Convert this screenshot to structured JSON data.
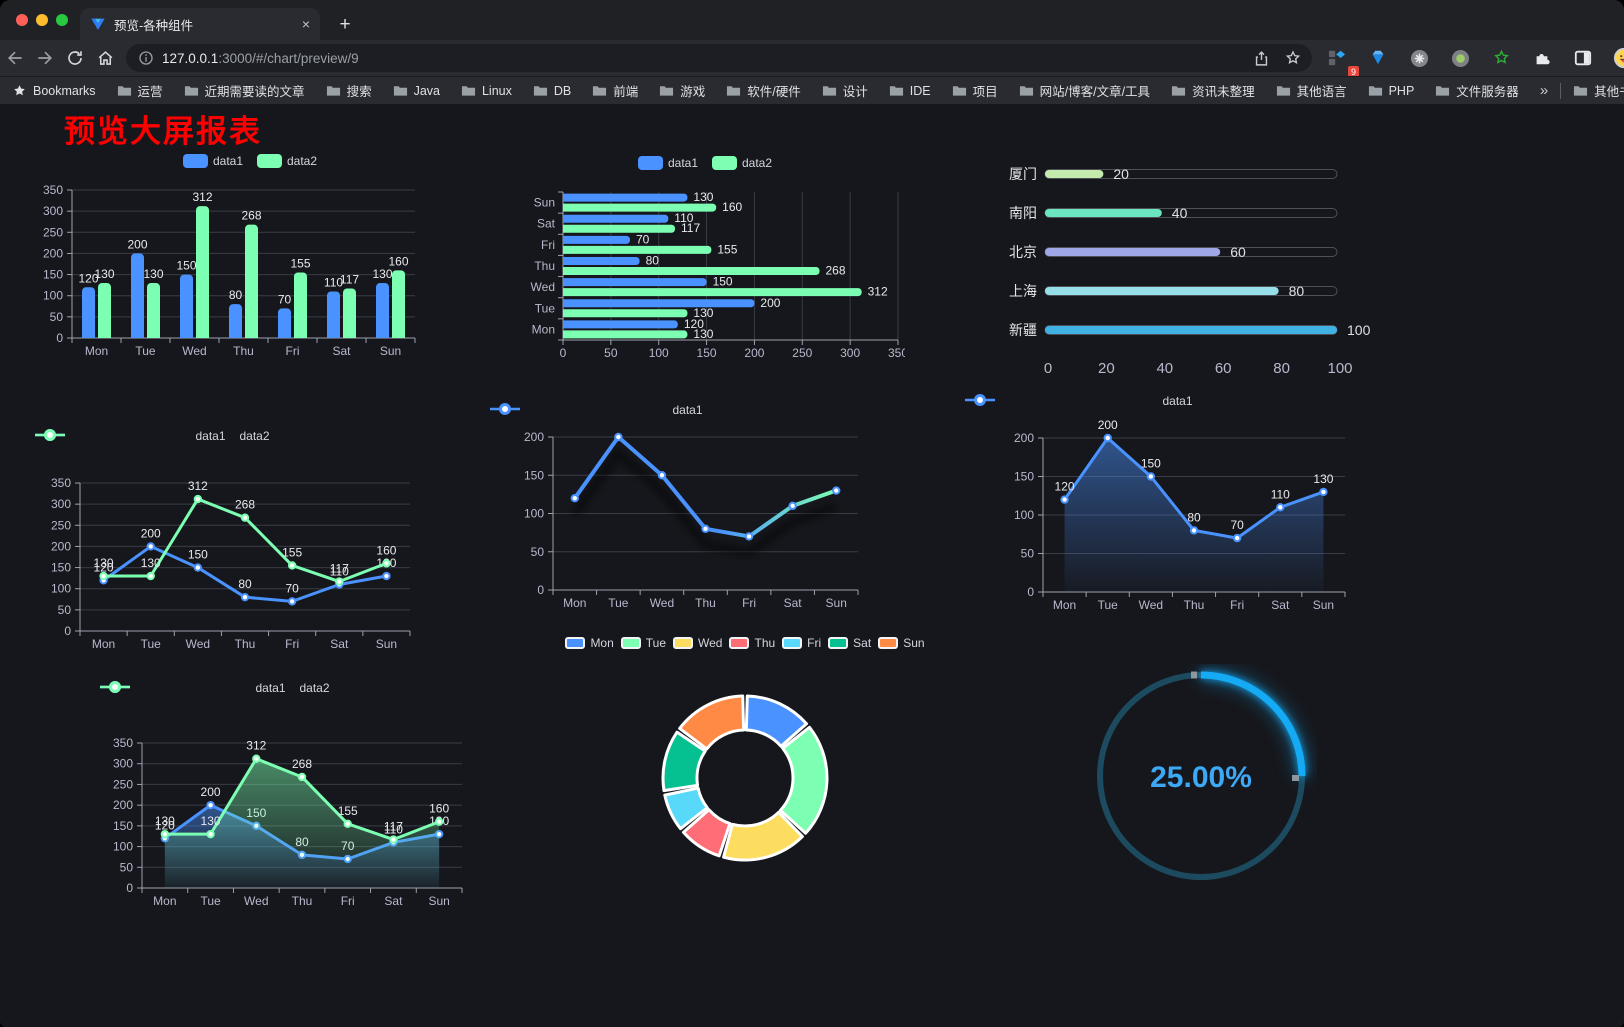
{
  "browser": {
    "tab": {
      "title": "预览-各种组件",
      "close_label": "×"
    },
    "new_tab_label": "+",
    "address": {
      "host": "127.0.0.1",
      "path": ":3000/#/chart/preview/9"
    },
    "extension_badge": "9",
    "bookmarks_bar": {
      "bookmarks_label": "Bookmarks",
      "folders": [
        "运营",
        "近期需要读的文章",
        "搜索",
        "Java",
        "Linux",
        "DB",
        "前端",
        "游戏",
        "软件/硬件",
        "设计",
        "IDE",
        "项目",
        "网站/博客/文章/工具",
        "资讯未整理",
        "其他语言",
        "PHP",
        "文件服务器"
      ],
      "overflow": "»",
      "other_bookmarks": "其他书签"
    }
  },
  "page": {
    "title": "预览大屏报表"
  },
  "colors": {
    "data1": "#4992ff",
    "data2": "#7cffb2",
    "title": "#ff0000",
    "axis": "#9fa2ae",
    "grid": "#3a3c46",
    "tick_label": "#b9b8ce",
    "value_label": "#e9eaee"
  },
  "chart_data": [
    {
      "id": "bar-vertical",
      "type": "bar",
      "categories": [
        "Mon",
        "Tue",
        "Wed",
        "Thu",
        "Fri",
        "Sat",
        "Sun"
      ],
      "series": [
        {
          "name": "data1",
          "color": "#4992ff",
          "values": [
            120,
            200,
            150,
            80,
            70,
            110,
            130
          ]
        },
        {
          "name": "data2",
          "color": "#7cffb2",
          "values": [
            130,
            130,
            312,
            268,
            155,
            117,
            160
          ]
        }
      ],
      "ylim": [
        0,
        350
      ],
      "yticks": [
        0,
        50,
        100,
        150,
        200,
        250,
        300,
        350
      ],
      "legend_position": "top",
      "value_labels": true,
      "grid": true
    },
    {
      "id": "bar-horizontal",
      "type": "bar",
      "orientation": "horizontal",
      "categories": [
        "Mon",
        "Tue",
        "Wed",
        "Thu",
        "Fri",
        "Sat",
        "Sun"
      ],
      "y_axis_top_to_bottom": [
        "Sun",
        "Sat",
        "Fri",
        "Thu",
        "Wed",
        "Tue",
        "Mon"
      ],
      "series": [
        {
          "name": "data1",
          "color": "#4992ff",
          "values": [
            120,
            200,
            150,
            80,
            70,
            110,
            130
          ]
        },
        {
          "name": "data2",
          "color": "#7cffb2",
          "values": [
            130,
            130,
            312,
            268,
            155,
            117,
            160
          ]
        }
      ],
      "xlim": [
        0,
        350
      ],
      "xticks": [
        0,
        50,
        100,
        150,
        200,
        250,
        300,
        350
      ],
      "legend_position": "top",
      "value_labels": true,
      "grid": true
    },
    {
      "id": "progress-bars",
      "type": "bar",
      "subtype": "progress",
      "items": [
        {
          "label": "厦门",
          "value": 20,
          "color": "#c4ebad"
        },
        {
          "label": "南阳",
          "value": 40,
          "color": "#6be6c1"
        },
        {
          "label": "北京",
          "value": 60,
          "color": "#a0a7e6"
        },
        {
          "label": "上海",
          "value": 80,
          "color": "#96dee8"
        },
        {
          "label": "新疆",
          "value": 100,
          "color": "#3fb1e3"
        }
      ],
      "xlim": [
        0,
        100
      ],
      "xticks": [
        0,
        20,
        40,
        60,
        80,
        100
      ]
    },
    {
      "id": "line-two-series",
      "type": "line",
      "categories": [
        "Mon",
        "Tue",
        "Wed",
        "Thu",
        "Fri",
        "Sat",
        "Sun"
      ],
      "series": [
        {
          "name": "data1",
          "color": "#4992ff",
          "values": [
            120,
            200,
            150,
            80,
            70,
            110,
            130
          ]
        },
        {
          "name": "data2",
          "color": "#7cffb2",
          "values": [
            130,
            130,
            312,
            268,
            155,
            117,
            160
          ]
        }
      ],
      "ylim": [
        0,
        350
      ],
      "yticks": [
        0,
        50,
        100,
        150,
        200,
        250,
        300,
        350
      ],
      "legend_position": "top",
      "value_labels": true
    },
    {
      "id": "line-gradient",
      "type": "line",
      "categories": [
        "Mon",
        "Tue",
        "Wed",
        "Thu",
        "Fri",
        "Sat",
        "Sun"
      ],
      "series": [
        {
          "name": "data1",
          "color": "#4992ff",
          "color_end": "#7cffb2",
          "values": [
            120,
            200,
            150,
            80,
            70,
            110,
            130
          ]
        }
      ],
      "ylim": [
        0,
        200
      ],
      "yticks": [
        0,
        50,
        100,
        150,
        200
      ],
      "legend_position": "top",
      "value_labels": false,
      "line_gradient": true,
      "shadow": true
    },
    {
      "id": "area-single",
      "type": "area",
      "categories": [
        "Mon",
        "Tue",
        "Wed",
        "Thu",
        "Fri",
        "Sat",
        "Sun"
      ],
      "series": [
        {
          "name": "data1",
          "color": "#4992ff",
          "values": [
            120,
            200,
            150,
            80,
            70,
            110,
            130
          ]
        }
      ],
      "ylim": [
        0,
        200
      ],
      "yticks": [
        0,
        50,
        100,
        150,
        200
      ],
      "legend_position": "top",
      "value_labels": true
    },
    {
      "id": "area-two-series",
      "type": "area",
      "categories": [
        "Mon",
        "Tue",
        "Wed",
        "Thu",
        "Fri",
        "Sat",
        "Sun"
      ],
      "series": [
        {
          "name": "data1",
          "color": "#4992ff",
          "values": [
            120,
            200,
            150,
            80,
            70,
            110,
            130
          ]
        },
        {
          "name": "data2",
          "color": "#7cffb2",
          "values": [
            130,
            130,
            312,
            268,
            155,
            117,
            160
          ]
        }
      ],
      "ylim": [
        0,
        350
      ],
      "yticks": [
        0,
        50,
        100,
        150,
        200,
        250,
        300,
        350
      ],
      "legend_position": "top",
      "value_labels": true
    },
    {
      "id": "donut",
      "type": "pie",
      "inner_radius": "58%",
      "labels": [
        "Mon",
        "Tue",
        "Wed",
        "Thu",
        "Fri",
        "Sat",
        "Sun"
      ],
      "values": [
        120,
        200,
        150,
        80,
        70,
        110,
        130
      ],
      "colors": [
        "#4992ff",
        "#7cffb2",
        "#fddd60",
        "#ff6e76",
        "#58d9f9",
        "#05c091",
        "#ff8a45"
      ],
      "legend_position": "top"
    },
    {
      "id": "gauge",
      "type": "gauge",
      "value": 25,
      "max": 100,
      "display": "25.00%",
      "color": "#14aaf4",
      "track_color": "#1c4a5e",
      "text_color": "#3da8f5"
    }
  ]
}
